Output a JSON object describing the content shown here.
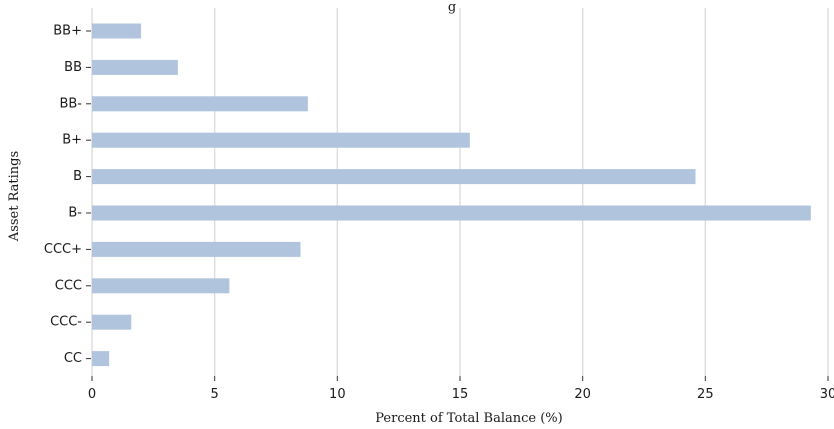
{
  "chart_data": {
    "type": "bar",
    "orientation": "horizontal",
    "title": "g",
    "xlabel": "Percent of Total Balance (%)",
    "ylabel": "Asset Ratings",
    "categories": [
      "BB+",
      "BB",
      "BB-",
      "B+",
      "B",
      "B-",
      "CCC+",
      "CCC",
      "CCC-",
      "CC"
    ],
    "values": [
      2.0,
      3.5,
      8.8,
      15.4,
      24.6,
      29.3,
      8.5,
      5.6,
      1.6,
      0.7
    ],
    "xlim": [
      0,
      30
    ],
    "xticks": [
      0,
      5,
      10,
      15,
      20,
      25,
      30
    ],
    "xtick_labels": [
      "0",
      "5",
      "10",
      "15",
      "20",
      "25",
      "30"
    ],
    "grid": "vertical",
    "bar_color": "#b0c4de",
    "grid_color": "#dcdcdc"
  }
}
